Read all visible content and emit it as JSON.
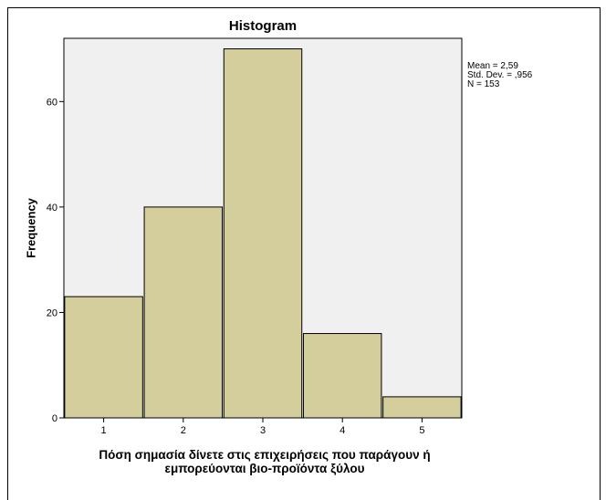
{
  "chart_data": {
    "type": "bar",
    "title": "Histogram",
    "xlabel_lines": [
      "Πόση σημασία δίνετε στις επιχειρήσεις που παράγουν ή",
      "εμπορεύονται βιο-προϊόντα ξύλου"
    ],
    "ylabel": "Frequency",
    "categories": [
      "1",
      "2",
      "3",
      "4",
      "5"
    ],
    "values": [
      23,
      40,
      70,
      16,
      4
    ],
    "ylim": [
      0,
      72
    ],
    "xlim": [
      0.5,
      5.5
    ],
    "yticks": [
      0,
      20,
      40,
      60
    ],
    "grid": false,
    "stats": {
      "mean": "Mean = 2,59",
      "std": "Std. Dev. = ,956",
      "n": "N = 153"
    },
    "colors": {
      "bar_fill": "#d3ce9b",
      "bar_stroke": "#000000",
      "plot_background": "#f0f0f0"
    }
  }
}
